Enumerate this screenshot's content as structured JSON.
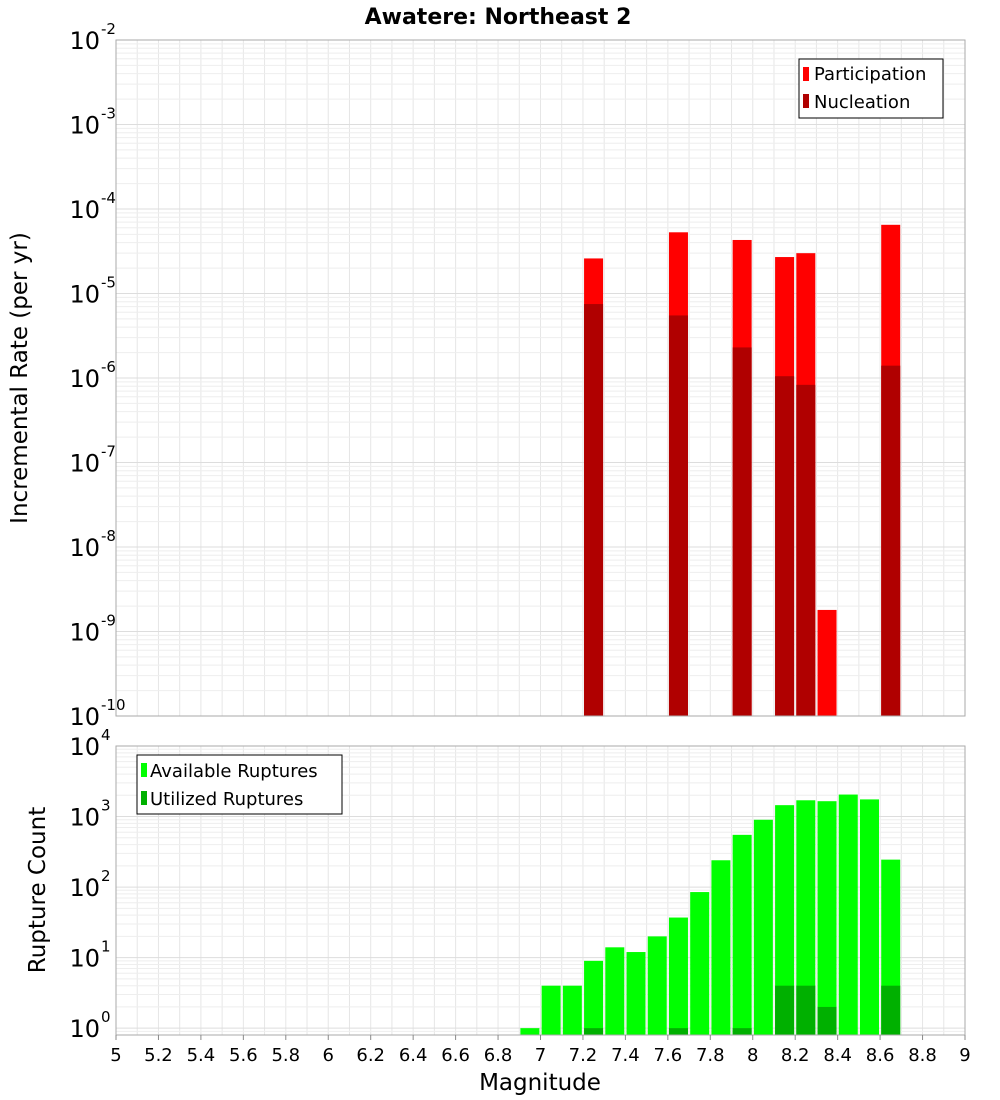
{
  "title": "Awatere: Northeast 2",
  "colors": {
    "participation": "#ff0000",
    "nucleation": "#b00000",
    "available": "#00ff00",
    "utilized": "#00b000",
    "grid": "#e6e6e6",
    "frame": "#aaaaaa"
  },
  "chart_data": [
    {
      "type": "bar",
      "scale": "log",
      "xlabel": "",
      "ylabel": "Incremental Rate (per yr)",
      "xlim": [
        5,
        9
      ],
      "ylim": [
        1e-10,
        0.01
      ],
      "y_ticks": [
        {
          "base": "10",
          "exp": "-10",
          "value": 1e-10
        },
        {
          "base": "10",
          "exp": "-9",
          "value": 1e-09
        },
        {
          "base": "10",
          "exp": "-8",
          "value": 1e-08
        },
        {
          "base": "10",
          "exp": "-7",
          "value": 1e-07
        },
        {
          "base": "10",
          "exp": "-6",
          "value": 1e-06
        },
        {
          "base": "10",
          "exp": "-5",
          "value": 1e-05
        },
        {
          "base": "10",
          "exp": "-4",
          "value": 0.0001
        },
        {
          "base": "10",
          "exp": "-3",
          "value": 0.001
        },
        {
          "base": "10",
          "exp": "-2",
          "value": 0.01
        }
      ],
      "grid": true,
      "legend_position": "top-right",
      "series": [
        {
          "name": "Participation",
          "color_key": "participation",
          "points": [
            {
              "x": 7.25,
              "y": 2.6e-05
            },
            {
              "x": 7.65,
              "y": 5.3e-05
            },
            {
              "x": 7.95,
              "y": 4.3e-05
            },
            {
              "x": 8.15,
              "y": 2.7e-05
            },
            {
              "x": 8.25,
              "y": 3e-05
            },
            {
              "x": 8.35,
              "y": 1.8e-09
            },
            {
              "x": 8.65,
              "y": 6.5e-05
            }
          ]
        },
        {
          "name": "Nucleation",
          "color_key": "nucleation",
          "points": [
            {
              "x": 7.25,
              "y": 7.5e-06
            },
            {
              "x": 7.65,
              "y": 5.5e-06
            },
            {
              "x": 7.95,
              "y": 2.3e-06
            },
            {
              "x": 8.15,
              "y": 1.05e-06
            },
            {
              "x": 8.25,
              "y": 8.3e-07
            },
            {
              "x": 8.65,
              "y": 1.4e-06
            }
          ]
        }
      ]
    },
    {
      "type": "bar",
      "scale": "log",
      "xlabel": "Magnitude",
      "ylabel": "Rupture Count",
      "xlim": [
        5,
        9
      ],
      "ylim": [
        0.8,
        10000
      ],
      "x_ticks": [
        "5",
        "5.2",
        "5.4",
        "5.6",
        "5.8",
        "6",
        "6.2",
        "6.4",
        "6.6",
        "6.8",
        "7",
        "7.2",
        "7.4",
        "7.6",
        "7.8",
        "8",
        "8.2",
        "8.4",
        "8.6",
        "8.8",
        "9"
      ],
      "y_ticks": [
        {
          "base": "10",
          "exp": "0",
          "value": 1
        },
        {
          "base": "10",
          "exp": "1",
          "value": 10
        },
        {
          "base": "10",
          "exp": "2",
          "value": 100
        },
        {
          "base": "10",
          "exp": "3",
          "value": 1000
        },
        {
          "base": "10",
          "exp": "4",
          "value": 10000
        }
      ],
      "grid": true,
      "legend_position": "top-left",
      "series": [
        {
          "name": "Available Ruptures",
          "color_key": "available",
          "points": [
            {
              "x": 6.95,
              "y": 1
            },
            {
              "x": 7.05,
              "y": 4
            },
            {
              "x": 7.15,
              "y": 4
            },
            {
              "x": 7.25,
              "y": 9
            },
            {
              "x": 7.35,
              "y": 14
            },
            {
              "x": 7.45,
              "y": 12
            },
            {
              "x": 7.55,
              "y": 20
            },
            {
              "x": 7.65,
              "y": 37
            },
            {
              "x": 7.75,
              "y": 85
            },
            {
              "x": 7.85,
              "y": 240
            },
            {
              "x": 7.95,
              "y": 550
            },
            {
              "x": 8.05,
              "y": 900
            },
            {
              "x": 8.15,
              "y": 1450
            },
            {
              "x": 8.25,
              "y": 1700
            },
            {
              "x": 8.35,
              "y": 1650
            },
            {
              "x": 8.45,
              "y": 2050
            },
            {
              "x": 8.55,
              "y": 1750
            },
            {
              "x": 8.65,
              "y": 245
            }
          ]
        },
        {
          "name": "Utilized Ruptures",
          "color_key": "utilized",
          "points": [
            {
              "x": 7.25,
              "y": 1
            },
            {
              "x": 7.65,
              "y": 1
            },
            {
              "x": 7.95,
              "y": 1
            },
            {
              "x": 8.15,
              "y": 4
            },
            {
              "x": 8.25,
              "y": 4
            },
            {
              "x": 8.35,
              "y": 2
            },
            {
              "x": 8.65,
              "y": 4
            }
          ]
        }
      ]
    }
  ]
}
